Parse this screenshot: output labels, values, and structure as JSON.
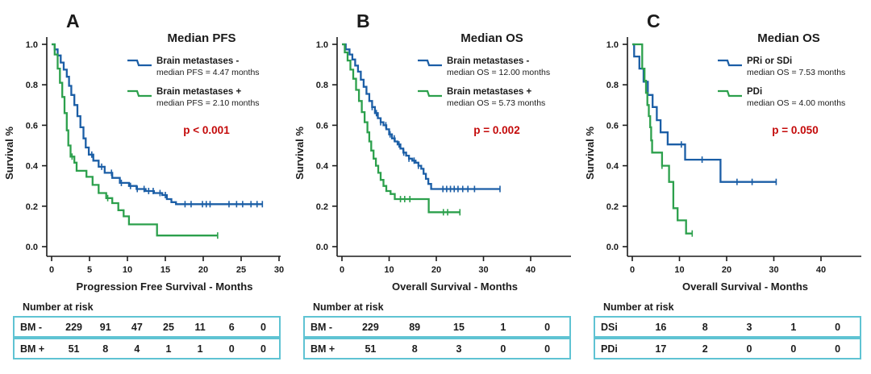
{
  "figure": {
    "ylabel": "Survival %",
    "yticks": [
      "1.0",
      "0.8",
      "0.6",
      "0.4",
      "0.2",
      "0.0"
    ],
    "risk_header": "Number at risk"
  },
  "colors": {
    "axis": "#1b1b1b",
    "blue": "#1b5ea6",
    "green": "#2ca04c",
    "p_red": "#c40a0a",
    "table_border": "#5fc3d3"
  },
  "chart_data": [
    {
      "type": "line",
      "subtype": "kaplan-meier-step",
      "panel": "A",
      "title": "Median PFS",
      "p_value": "p < 0.001",
      "xlabel": "Progression Free Survival - Months",
      "ylabel": "Survival %",
      "xlim": [
        0,
        30
      ],
      "ylim": [
        0,
        1
      ],
      "xticks": [
        0,
        5,
        10,
        15,
        20,
        25,
        30
      ],
      "yticks": [
        0,
        0.2,
        0.4,
        0.6,
        0.8,
        1.0
      ],
      "legend_position": "top-right",
      "grid": false,
      "series": [
        {
          "name": "Brain metastases -",
          "median_label": "median PFS = 4.47 months",
          "color": "#1b5ea6",
          "points": [
            [
              0,
              1.0
            ],
            [
              0.4,
              0.975
            ],
            [
              0.8,
              0.945
            ],
            [
              1.2,
              0.91
            ],
            [
              1.6,
              0.875
            ],
            [
              2.0,
              0.84
            ],
            [
              2.3,
              0.795
            ],
            [
              2.6,
              0.75
            ],
            [
              3.0,
              0.7
            ],
            [
              3.4,
              0.645
            ],
            [
              3.8,
              0.59
            ],
            [
              4.2,
              0.535
            ],
            [
              4.5,
              0.49
            ],
            [
              4.9,
              0.455
            ],
            [
              5.5,
              0.425
            ],
            [
              6.2,
              0.395
            ],
            [
              7.0,
              0.365
            ],
            [
              8.0,
              0.34
            ],
            [
              9.0,
              0.315
            ],
            [
              10.2,
              0.3
            ],
            [
              11.2,
              0.285
            ],
            [
              12.4,
              0.275
            ],
            [
              13.5,
              0.265
            ],
            [
              14.6,
              0.255
            ],
            [
              15.2,
              0.235
            ],
            [
              15.8,
              0.22
            ],
            [
              16.4,
              0.21
            ],
            [
              27.8,
              0.21
            ]
          ],
          "censor_times": [
            5.3,
            6.6,
            7.9,
            9.2,
            10.4,
            11.3,
            12.2,
            12.8,
            13.4,
            14.3,
            15.0,
            17.6,
            18.4,
            19.9,
            20.4,
            20.9,
            23.4,
            24.4,
            25.2,
            26.3,
            27.1,
            27.8
          ]
        },
        {
          "name": "Brain metastases +",
          "median_label": "median PFS = 2.10 months",
          "color": "#2ca04c",
          "points": [
            [
              0,
              1.0
            ],
            [
              0.4,
              0.95
            ],
            [
              0.8,
              0.88
            ],
            [
              1.1,
              0.81
            ],
            [
              1.4,
              0.74
            ],
            [
              1.7,
              0.66
            ],
            [
              2.0,
              0.575
            ],
            [
              2.2,
              0.5
            ],
            [
              2.5,
              0.445
            ],
            [
              3.0,
              0.415
            ],
            [
              3.3,
              0.375
            ],
            [
              4.6,
              0.345
            ],
            [
              5.4,
              0.305
            ],
            [
              6.2,
              0.265
            ],
            [
              7.2,
              0.24
            ],
            [
              8.0,
              0.215
            ],
            [
              8.8,
              0.18
            ],
            [
              9.5,
              0.15
            ],
            [
              10.2,
              0.11
            ],
            [
              13.9,
              0.055
            ],
            [
              21.9,
              0.055
            ]
          ],
          "censor_times": [
            2.7,
            7.4,
            21.9
          ]
        }
      ],
      "number_at_risk": {
        "rows": [
          {
            "label": "BM -",
            "values": [
              229,
              91,
              47,
              25,
              11,
              6,
              0
            ]
          },
          {
            "label": "BM +",
            "values": [
              51,
              8,
              4,
              1,
              1,
              0,
              0
            ]
          }
        ]
      }
    },
    {
      "type": "line",
      "subtype": "kaplan-meier-step",
      "panel": "B",
      "title": "Median OS",
      "p_value": "p = 0.002",
      "xlabel": "Overall Survival - Months",
      "ylabel": "Survival %",
      "xlim": [
        0,
        40
      ],
      "ylim": [
        0,
        1
      ],
      "xticks": [
        0,
        10,
        20,
        30,
        40
      ],
      "yticks": [
        0,
        0.2,
        0.4,
        0.6,
        0.8,
        1.0
      ],
      "legend_position": "top-right",
      "grid": false,
      "series": [
        {
          "name": "Brain metastases -",
          "median_label": "median OS = 12.00 months",
          "color": "#1b5ea6",
          "points": [
            [
              0,
              1.0
            ],
            [
              0.8,
              0.975
            ],
            [
              1.6,
              0.95
            ],
            [
              2.2,
              0.925
            ],
            [
              2.8,
              0.895
            ],
            [
              3.4,
              0.865
            ],
            [
              4.0,
              0.825
            ],
            [
              4.6,
              0.79
            ],
            [
              5.2,
              0.755
            ],
            [
              5.8,
              0.72
            ],
            [
              6.4,
              0.69
            ],
            [
              7.0,
              0.66
            ],
            [
              7.6,
              0.635
            ],
            [
              8.2,
              0.615
            ],
            [
              8.8,
              0.6
            ],
            [
              9.4,
              0.58
            ],
            [
              10.0,
              0.555
            ],
            [
              10.6,
              0.535
            ],
            [
              11.2,
              0.52
            ],
            [
              11.8,
              0.505
            ],
            [
              12.4,
              0.485
            ],
            [
              13.0,
              0.465
            ],
            [
              13.6,
              0.45
            ],
            [
              14.2,
              0.435
            ],
            [
              14.9,
              0.425
            ],
            [
              15.6,
              0.415
            ],
            [
              16.2,
              0.4
            ],
            [
              16.8,
              0.385
            ],
            [
              17.3,
              0.36
            ],
            [
              17.8,
              0.335
            ],
            [
              18.3,
              0.31
            ],
            [
              18.9,
              0.285
            ],
            [
              33.5,
              0.285
            ]
          ],
          "censor_times": [
            6.4,
            7.3,
            8.2,
            9.3,
            10.2,
            11.1,
            12.1,
            13.1,
            14.2,
            15.3,
            16.2,
            21.4,
            22.2,
            23.0,
            23.8,
            24.6,
            25.6,
            26.7,
            28.1,
            33.5
          ]
        },
        {
          "name": "Brain metastases +",
          "median_label": "median OS = 5.73 months",
          "color": "#2ca04c",
          "points": [
            [
              0,
              1.0
            ],
            [
              0.6,
              0.96
            ],
            [
              1.2,
              0.92
            ],
            [
              1.8,
              0.875
            ],
            [
              2.4,
              0.83
            ],
            [
              3.0,
              0.775
            ],
            [
              3.6,
              0.72
            ],
            [
              4.2,
              0.665
            ],
            [
              4.8,
              0.615
            ],
            [
              5.4,
              0.565
            ],
            [
              5.8,
              0.52
            ],
            [
              6.2,
              0.475
            ],
            [
              6.7,
              0.435
            ],
            [
              7.2,
              0.4
            ],
            [
              7.7,
              0.365
            ],
            [
              8.2,
              0.33
            ],
            [
              8.8,
              0.3
            ],
            [
              9.4,
              0.275
            ],
            [
              10.3,
              0.26
            ],
            [
              11.2,
              0.235
            ],
            [
              18.4,
              0.17
            ],
            [
              25.0,
              0.17
            ]
          ],
          "censor_times": [
            12.4,
            13.3,
            14.4,
            21.5,
            22.4,
            25.0
          ]
        }
      ],
      "number_at_risk": {
        "rows": [
          {
            "label": "BM -",
            "values": [
              229,
              89,
              15,
              1,
              0
            ]
          },
          {
            "label": "BM +",
            "values": [
              51,
              8,
              3,
              0,
              0
            ]
          }
        ]
      }
    },
    {
      "type": "line",
      "subtype": "kaplan-meier-step",
      "panel": "C",
      "title": "Median OS",
      "p_value": "p = 0.050",
      "xlabel": "Overall Survival - Months",
      "ylabel": "Survival %",
      "xlim": [
        0,
        40
      ],
      "ylim": [
        0,
        1
      ],
      "xticks": [
        0,
        10,
        20,
        30,
        40
      ],
      "yticks": [
        0,
        0.2,
        0.4,
        0.6,
        0.8,
        1.0
      ],
      "legend_position": "top-right",
      "grid": false,
      "series": [
        {
          "name": "PRi or SDi",
          "median_label": "median OS = 7.53 months",
          "color": "#1b5ea6",
          "points": [
            [
              0,
              1.0
            ],
            [
              0.4,
              0.94
            ],
            [
              1.5,
              0.88
            ],
            [
              2.4,
              0.815
            ],
            [
              3.3,
              0.75
            ],
            [
              4.3,
              0.69
            ],
            [
              5.2,
              0.625
            ],
            [
              6.0,
              0.565
            ],
            [
              7.5,
              0.505
            ],
            [
              11.2,
              0.43
            ],
            [
              18.7,
              0.32
            ],
            [
              30.5,
              0.32
            ]
          ],
          "censor_times": [
            10.4,
            14.8,
            22.2,
            25.4,
            30.5
          ]
        },
        {
          "name": "PDi",
          "median_label": "median OS = 4.00 months",
          "color": "#2ca04c",
          "points": [
            [
              0,
              1.0
            ],
            [
              2.1,
              0.88
            ],
            [
              2.6,
              0.82
            ],
            [
              2.9,
              0.76
            ],
            [
              3.2,
              0.7
            ],
            [
              3.5,
              0.645
            ],
            [
              3.8,
              0.59
            ],
            [
              4.0,
              0.525
            ],
            [
              4.2,
              0.465
            ],
            [
              6.3,
              0.4
            ],
            [
              7.8,
              0.32
            ],
            [
              8.7,
              0.19
            ],
            [
              9.6,
              0.13
            ],
            [
              11.4,
              0.065
            ],
            [
              12.7,
              0.065
            ]
          ],
          "censor_times": [
            6.3,
            12.7
          ]
        }
      ],
      "number_at_risk": {
        "rows": [
          {
            "label": "DSi",
            "values": [
              16,
              8,
              3,
              1,
              0
            ]
          },
          {
            "label": "PDi",
            "values": [
              17,
              2,
              0,
              0,
              0
            ]
          }
        ]
      }
    }
  ]
}
